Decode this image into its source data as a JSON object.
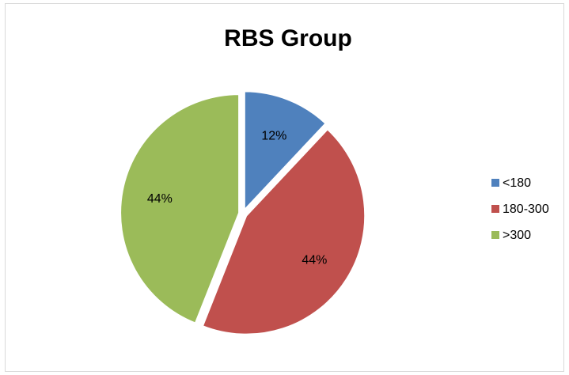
{
  "chart_data": {
    "type": "pie",
    "title": "RBS Group",
    "categories": [
      "<180",
      "180-300",
      ">300"
    ],
    "values": [
      12,
      44,
      44
    ],
    "data_labels": [
      "12%",
      "44%",
      "44%"
    ],
    "colors": [
      "#4f81bd",
      "#c0504d",
      "#9bbb59"
    ],
    "legend_position": "right",
    "exploded": true
  }
}
